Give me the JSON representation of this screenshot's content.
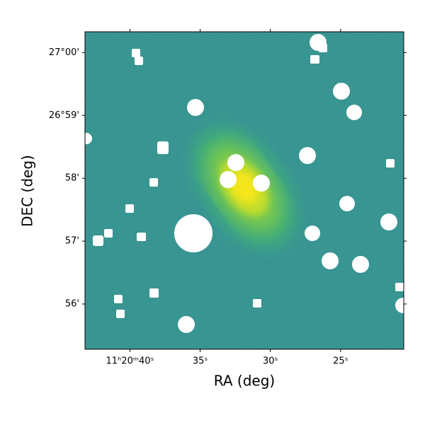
{
  "chart_data": {
    "type": "image",
    "xlabel": "RA (deg)",
    "ylabel": "DEC (deg)",
    "xlim": [
      43.2,
      20.5
    ],
    "ylim": [
      55.28,
      60.33
    ],
    "xticks": [
      {
        "value": 40,
        "label": "11ʰ20ᵐ40ˢ"
      },
      {
        "value": 35,
        "label": "35ˢ"
      },
      {
        "value": 30,
        "label": "30ˢ"
      },
      {
        "value": 25,
        "label": "25ˢ"
      }
    ],
    "yticks": [
      {
        "value": 60,
        "label": "27°00'"
      },
      {
        "value": 59,
        "label": "26°59'"
      },
      {
        "value": 58,
        "label": "58'"
      },
      {
        "value": 57,
        "label": "57'"
      },
      {
        "value": 56,
        "label": "56'"
      }
    ]
  }
}
